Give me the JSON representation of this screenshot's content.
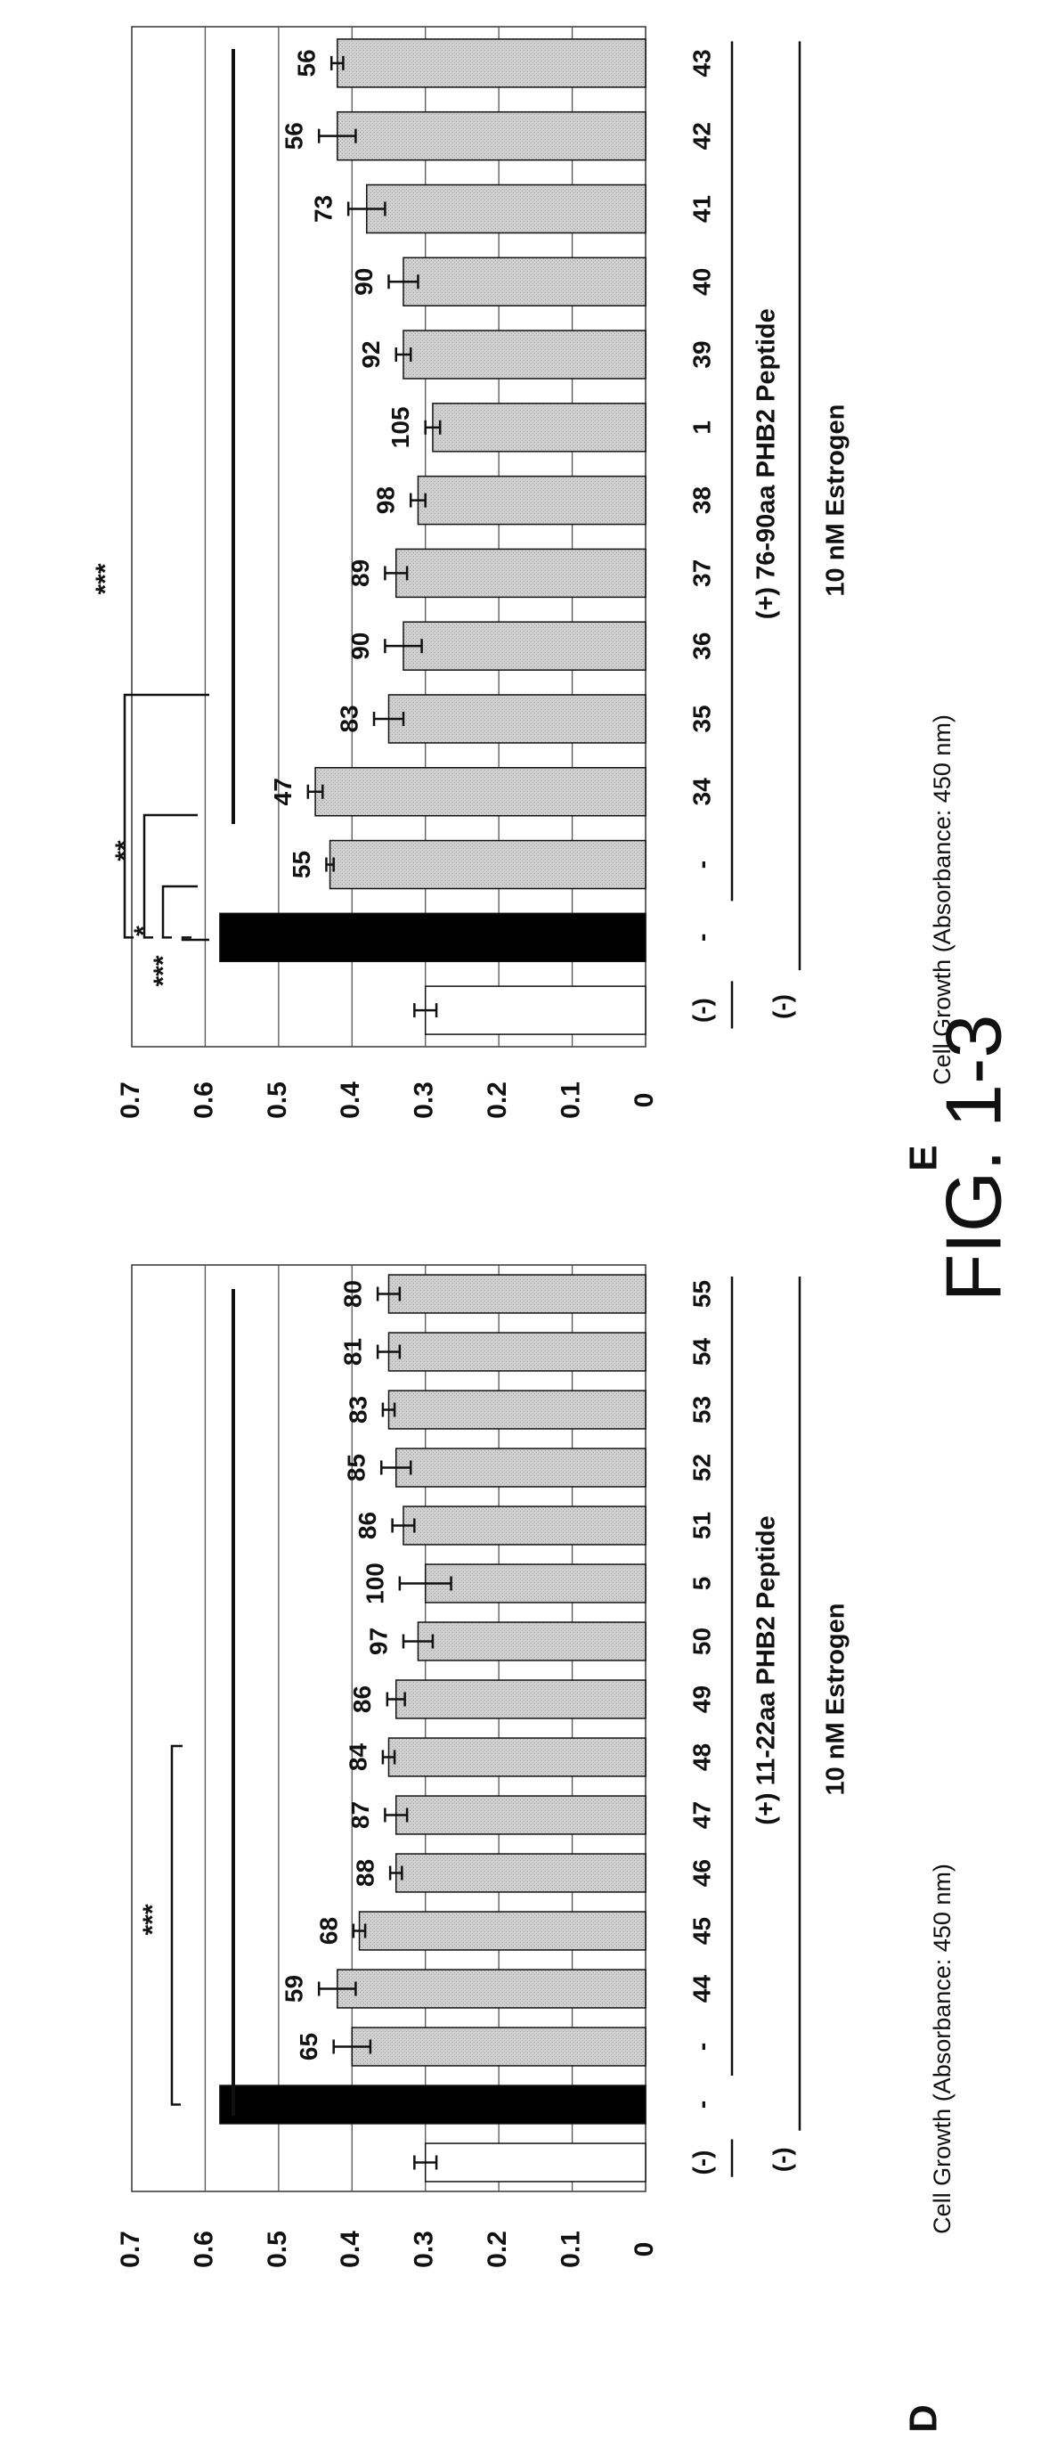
{
  "figure_label": "FIG. 1-3",
  "chart_data": [
    {
      "type": "bar",
      "panel": "D",
      "ylabel": "Cell Growth (Absorbance: 450 nm)",
      "ylim": [
        0,
        0.7
      ],
      "yticks": [
        "0",
        "0.1",
        "0.2",
        "0.3",
        "0.4",
        "0.5",
        "0.6",
        "0.7"
      ],
      "grid": true,
      "categories": [
        "(-)",
        "-",
        "-",
        "44",
        "45",
        "46",
        "47",
        "48",
        "49",
        "50",
        "5",
        "51",
        "52",
        "53",
        "54",
        "55"
      ],
      "values": [
        0.3,
        0.58,
        0.4,
        0.42,
        0.39,
        0.34,
        0.34,
        0.35,
        0.34,
        0.31,
        0.3,
        0.33,
        0.34,
        0.35,
        0.35,
        0.35
      ],
      "errors": [
        0.015,
        0,
        0.025,
        0.025,
        0.008,
        0.008,
        0.015,
        0.008,
        0.012,
        0.02,
        0.035,
        0.015,
        0.02,
        0.008,
        0.015,
        0.015
      ],
      "bar_styles": [
        "white",
        "black",
        "gray",
        "gray",
        "gray",
        "gray",
        "gray",
        "gray",
        "gray",
        "gray",
        "gray",
        "gray",
        "gray",
        "gray",
        "gray",
        "gray"
      ],
      "bar_labels": [
        "",
        "",
        "65",
        "59",
        "68",
        "88",
        "87",
        "84",
        "86",
        "97",
        "100",
        "86",
        "85",
        "83",
        "81",
        "80"
      ],
      "significance": [
        "***"
      ],
      "group_labels": {
        "peptide": "(+) 11-22aa PHB2 Peptide",
        "control": "(-)",
        "estrogen": "10 nM Estrogen"
      }
    },
    {
      "type": "bar",
      "panel": "E",
      "ylabel": "Cell Growth (Absorbance: 450 nm)",
      "ylim": [
        0,
        0.7
      ],
      "yticks": [
        "0",
        "0.1",
        "0.2",
        "0.3",
        "0.4",
        "0.5",
        "0.6",
        "0.7"
      ],
      "grid": true,
      "categories": [
        "(-)",
        "-",
        "-",
        "34",
        "35",
        "36",
        "37",
        "38",
        "1",
        "39",
        "40",
        "41",
        "42",
        "43"
      ],
      "values": [
        0.3,
        0.58,
        0.43,
        0.45,
        0.35,
        0.33,
        0.34,
        0.31,
        0.29,
        0.33,
        0.33,
        0.38,
        0.42,
        0.42
      ],
      "errors": [
        0.015,
        0,
        0.005,
        0.01,
        0.02,
        0.025,
        0.015,
        0.01,
        0.01,
        0.01,
        0.02,
        0.025,
        0.025,
        0.008
      ],
      "bar_styles": [
        "white",
        "black",
        "gray",
        "gray",
        "gray",
        "gray",
        "gray",
        "gray",
        "gray",
        "gray",
        "gray",
        "gray",
        "gray",
        "gray"
      ],
      "bar_labels": [
        "",
        "",
        "55",
        "47",
        "83",
        "90",
        "89",
        "98",
        "105",
        "92",
        "90",
        "73",
        "56",
        "56"
      ],
      "significance": [
        "***",
        "*",
        "**",
        "***"
      ],
      "group_labels": {
        "peptide": "(+) 76-90aa PHB2 Peptide",
        "control": "(-)",
        "estrogen": "10 nM Estrogen"
      }
    }
  ]
}
